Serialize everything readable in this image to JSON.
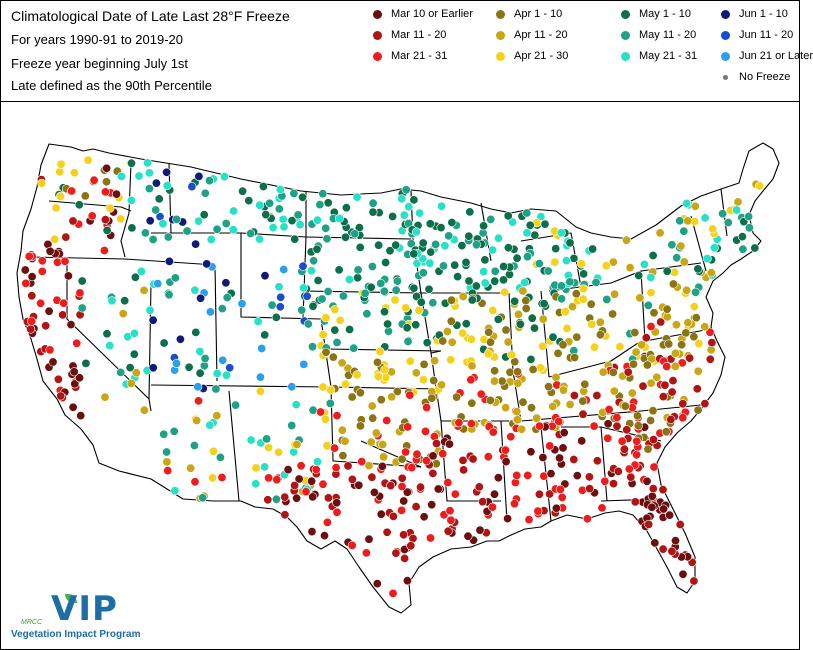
{
  "header": {
    "title": "Climatological Date of Late Last 28°F Freeze",
    "line2": "For years 1990-91 to 2019-20",
    "line3": "Freeze year beginning July 1st",
    "line4": "Late defined as the 90th Percentile"
  },
  "legend": [
    {
      "label": "Mar 10 or Earlier",
      "color": "#6b0f0f"
    },
    {
      "label": "Mar 11 - 20",
      "color": "#b01414"
    },
    {
      "label": "Mar 21 - 31",
      "color": "#ee1c1c"
    },
    {
      "label": "Apr 1 - 10",
      "color": "#8a7414"
    },
    {
      "label": "Apr 11 - 20",
      "color": "#c8a614"
    },
    {
      "label": "Apr 21 - 30",
      "color": "#f4d21c"
    },
    {
      "label": "May 1 - 10",
      "color": "#0d6e4a"
    },
    {
      "label": "May 11 - 20",
      "color": "#1ea184"
    },
    {
      "label": "May 21 - 31",
      "color": "#27e0c8"
    },
    {
      "label": "Jun 1 - 10",
      "color": "#101a78"
    },
    {
      "label": "Jun 11 - 20",
      "color": "#1a4ecf"
    },
    {
      "label": "Jun 21 or Later",
      "color": "#2a9ff0"
    },
    {
      "label": "No Freeze",
      "color": "#777777"
    }
  ],
  "logo": {
    "wordmark": "VIP",
    "program": "Vegetation Impact Program",
    "org": "MRCC"
  }
}
